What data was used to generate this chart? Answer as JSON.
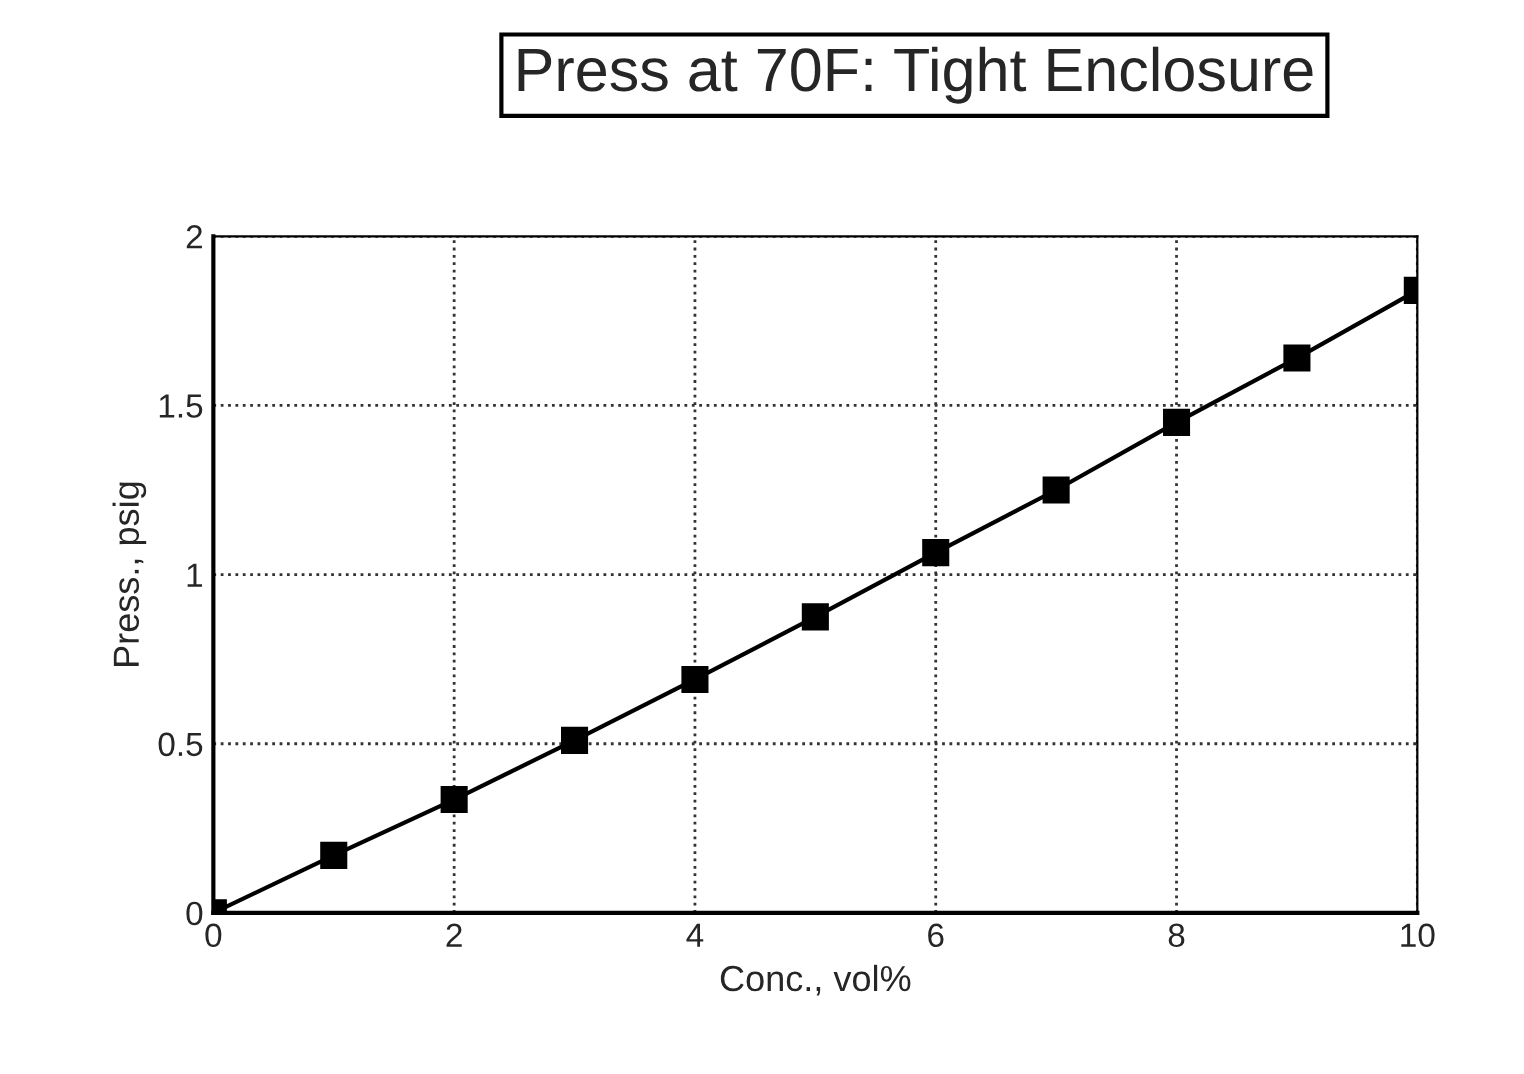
{
  "chart_data": {
    "type": "line",
    "title": "Press at 70F: Tight Enclosure",
    "xlabel": "Conc., vol%",
    "ylabel": "Press., psig",
    "x": [
      0,
      1,
      2,
      3,
      4,
      5,
      6,
      7,
      8,
      9,
      10
    ],
    "series": [
      {
        "color": "#000000",
        "values": [
          0,
          0.17,
          0.335,
          0.51,
          0.69,
          0.875,
          1.065,
          1.25,
          1.45,
          1.64,
          1.84
        ]
      }
    ],
    "xlim": [
      0,
      10
    ],
    "ylim": [
      0,
      2
    ],
    "xticks": [
      0,
      2,
      4,
      6,
      8,
      10
    ],
    "yticks": [
      0,
      0.5,
      1,
      1.5,
      2
    ],
    "grid": true,
    "marker": "square",
    "line_style": "solid"
  }
}
